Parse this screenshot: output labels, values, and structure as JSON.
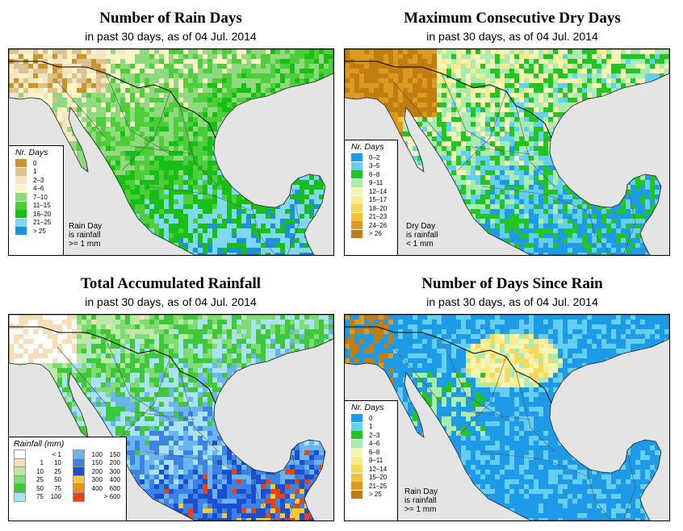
{
  "panels": [
    {
      "title": "Number of Rain Days",
      "subtitle": "in past 30 days, as of  04 Jul. 2014",
      "legend_title": "Nr. Days",
      "legend": [
        {
          "label": "0",
          "color": "#c8962e"
        },
        {
          "label": "1",
          "color": "#ddc28f"
        },
        {
          "label": "2–3",
          "color": "#f5e6bf"
        },
        {
          "label": "4–6",
          "color": "#faf5c8"
        },
        {
          "label": "7–10",
          "color": "#8fd97f"
        },
        {
          "label": "11–15",
          "color": "#4fce3c"
        },
        {
          "label": "16–20",
          "color": "#17bf17"
        },
        {
          "label": "21–25",
          "color": "#7fd8f0"
        },
        {
          "label": "> 25",
          "color": "#1d90d8"
        }
      ],
      "note": [
        "Rain Day",
        "is rainfall",
        ">= 1 mm"
      ]
    },
    {
      "title": "Maximum Consecutive Dry Days",
      "subtitle": "in past 30 days, as of  04 Jul. 2014",
      "legend_title": "Nr. Days",
      "legend": [
        {
          "label": "0–2",
          "color": "#1e9be8"
        },
        {
          "label": "3–5",
          "color": "#64cff0"
        },
        {
          "label": "6–8",
          "color": "#22c522"
        },
        {
          "label": "9–11",
          "color": "#a8ecb0"
        },
        {
          "label": "12–14",
          "color": "#f7f4b8"
        },
        {
          "label": "15–17",
          "color": "#f8ec8c"
        },
        {
          "label": "18–20",
          "color": "#f8d75a"
        },
        {
          "label": "21–23",
          "color": "#f2c23a"
        },
        {
          "label": "24–26",
          "color": "#dc9b1e"
        },
        {
          "label": "> 26",
          "color": "#c27d10"
        }
      ],
      "note": [
        "Dry Day",
        "is rainfall",
        "< 1 mm"
      ]
    },
    {
      "title": "Total Accumulated Rainfall",
      "subtitle": "in past 30 days, as of  04 Jul. 2014",
      "legend_title": "Rainfall (mm)",
      "legend_left": [
        {
          "lo": "",
          "hi": "< 1",
          "color": "#ffffff"
        },
        {
          "lo": "1",
          "hi": "10",
          "color": "#f5deb8"
        },
        {
          "lo": "10",
          "hi": "25",
          "color": "#bde9a6"
        },
        {
          "lo": "25",
          "hi": "50",
          "color": "#7fdc73"
        },
        {
          "lo": "50",
          "hi": "75",
          "color": "#3fc93a"
        },
        {
          "lo": "75",
          "hi": "100",
          "color": "#a9e2f4"
        }
      ],
      "legend_right": [
        {
          "lo": "100",
          "hi": "150",
          "color": "#6ab4ef"
        },
        {
          "lo": "150",
          "hi": "200",
          "color": "#3d83e6"
        },
        {
          "lo": "200",
          "hi": "300",
          "color": "#1a4fd0"
        },
        {
          "lo": "300",
          "hi": "400",
          "color": "#f5c93a"
        },
        {
          "lo": "400",
          "hi": "600",
          "color": "#f08c1e"
        },
        {
          "lo": "",
          "hi": "> 600",
          "color": "#e8420f"
        }
      ]
    },
    {
      "title": "Number of Days Since Rain",
      "subtitle": "in past 30 days, as of  04 Jul. 2014",
      "legend_title": "Nr. Days",
      "legend": [
        {
          "label": "0",
          "color": "#1e9be8"
        },
        {
          "label": "1",
          "color": "#64cff0"
        },
        {
          "label": "2–3",
          "color": "#22c522"
        },
        {
          "label": "4–6",
          "color": "#a8ecb0"
        },
        {
          "label": "6–8",
          "color": "#f7f4b8"
        },
        {
          "label": "9–11",
          "color": "#f8ec8c"
        },
        {
          "label": "12–14",
          "color": "#f8d75a"
        },
        {
          "label": "15–20",
          "color": "#f2c23a"
        },
        {
          "label": "21–25",
          "color": "#dc9b1e"
        },
        {
          "label": "> 25",
          "color": "#c27d10"
        }
      ],
      "note": [
        "Rain Day",
        "is rainfall",
        ">= 1 mm"
      ]
    }
  ]
}
